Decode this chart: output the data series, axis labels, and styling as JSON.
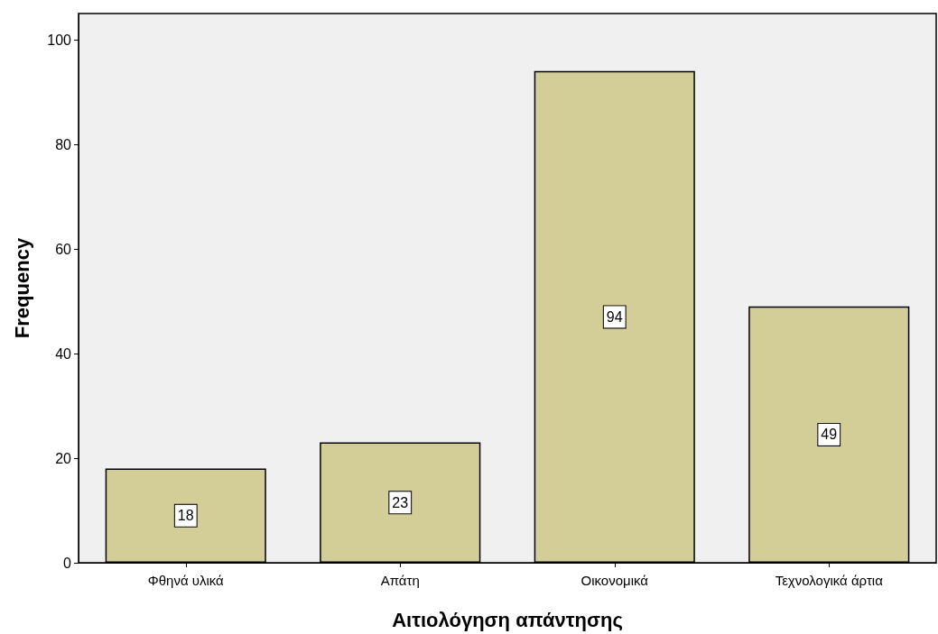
{
  "chart_data": {
    "type": "bar",
    "xlabel": "Αιτιολόγηση απάντησης",
    "ylabel": "Frequency",
    "categories": [
      "Φθηνά υλικά",
      "Απάτη",
      "Οικονομικά",
      "Τεχνολογικά άρτια"
    ],
    "values": [
      18,
      23,
      94,
      49
    ],
    "color": "#d3ce97",
    "ylim": [
      0,
      105
    ],
    "yticks": [
      0,
      20,
      40,
      60,
      80,
      100
    ],
    "data_labels": true
  }
}
